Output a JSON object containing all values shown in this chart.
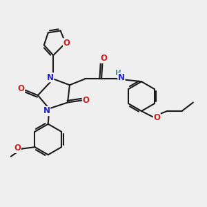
{
  "bg_color": "#efefef",
  "bond_color": "#1a1a1a",
  "bond_width": 1.5,
  "atom_colors": {
    "N": "#2020cc",
    "O": "#cc2020",
    "H": "#558888",
    "C": "#1a1a1a"
  },
  "font_size_atoms": 8.5,
  "fig_size": [
    3.0,
    3.0
  ],
  "dpi": 100
}
